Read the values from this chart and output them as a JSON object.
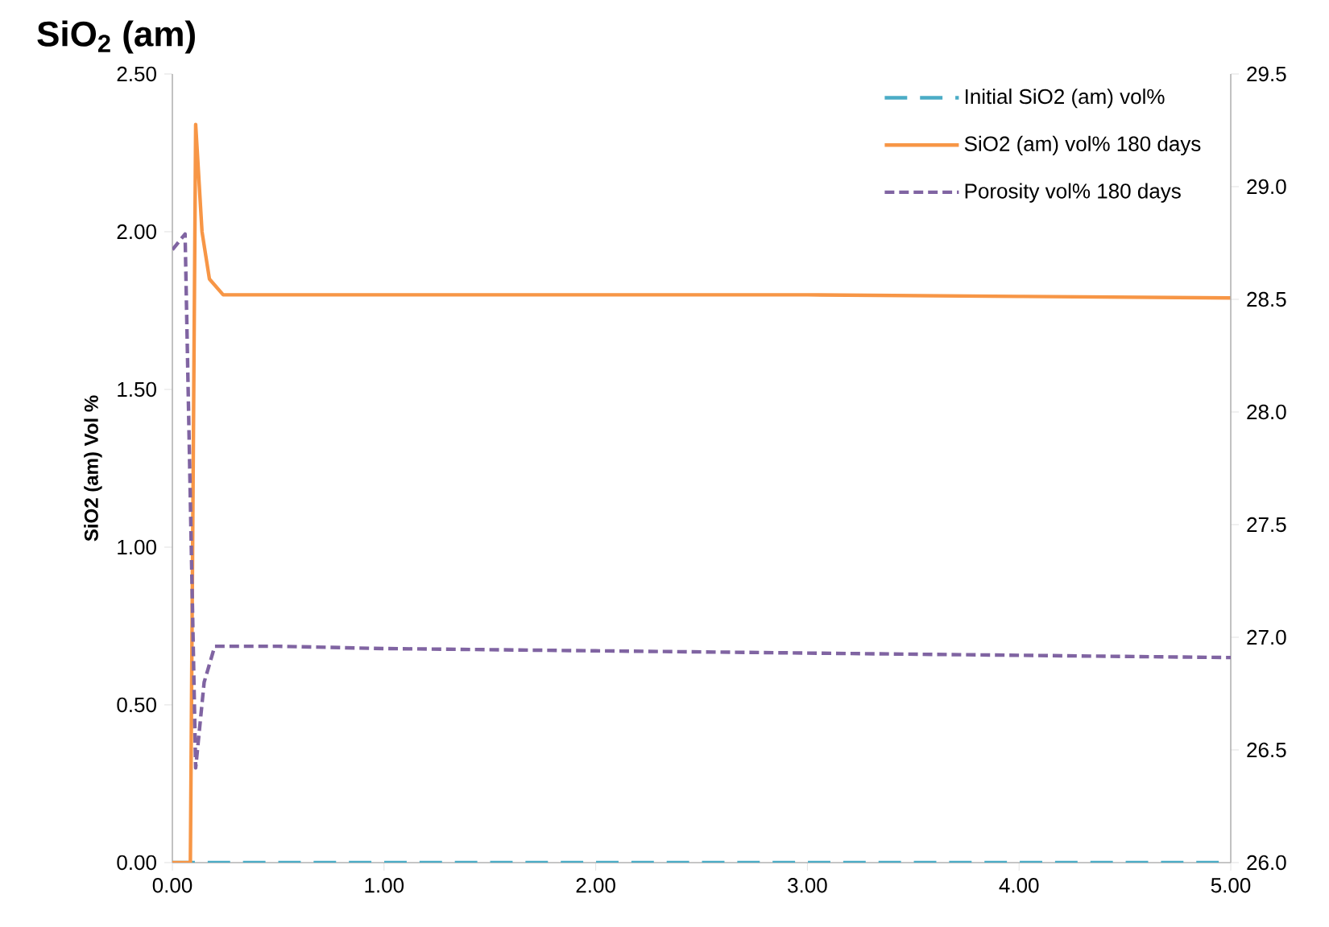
{
  "chart_data": {
    "type": "line",
    "title": "SiO$_{2}$ (am)",
    "ylabel": "SiO2 (am) Vol %",
    "xlim": [
      0,
      5
    ],
    "xticks": [
      {
        "value": 0,
        "label": "0.00"
      },
      {
        "value": 1,
        "label": "1.00"
      },
      {
        "value": 2,
        "label": "2.00"
      },
      {
        "value": 3,
        "label": "3.00"
      },
      {
        "value": 4,
        "label": "4.00"
      },
      {
        "value": 5,
        "label": "5.00"
      }
    ],
    "ylim": [
      0,
      2.5
    ],
    "yticks": [
      {
        "value": 0,
        "label": "0.00"
      },
      {
        "value": 0.5,
        "label": "0.50"
      },
      {
        "value": 1,
        "label": "1.00"
      },
      {
        "value": 1.5,
        "label": "1.50"
      },
      {
        "value": 2,
        "label": "2.00"
      },
      {
        "value": 2.5,
        "label": "2.50"
      }
    ],
    "y2lim": [
      26,
      29.5
    ],
    "y2ticks": [
      {
        "value": 26,
        "label": "26.0"
      },
      {
        "value": 26.5,
        "label": "26.5"
      },
      {
        "value": 27,
        "label": "27.0"
      },
      {
        "value": 27.5,
        "label": "27.5"
      },
      {
        "value": 28,
        "label": "28.0"
      },
      {
        "value": 28.5,
        "label": "28.5"
      },
      {
        "value": 29,
        "label": "29.0"
      },
      {
        "value": 29.5,
        "label": "29.5"
      }
    ],
    "grid": false,
    "legend": "top right",
    "marker": "none",
    "series": [
      {
        "name": "Initial SiO2 (am) vol%",
        "color": "#4bacc6",
        "line_style": "dashed",
        "x": [
          0,
          5
        ],
        "values": [
          0,
          0
        ]
      },
      {
        "name": "SiO2 (am) vol% 180 days",
        "color": "#f79646",
        "line_style": "solid",
        "x": [
          0,
          0.085,
          0.11,
          0.14,
          0.175,
          0.24,
          0.5,
          1,
          2,
          3,
          4,
          5
        ],
        "values": [
          0,
          0,
          2.34,
          2.0,
          1.85,
          1.8,
          1.8,
          1.8,
          1.8,
          1.8,
          1.795,
          1.79
        ]
      },
      {
        "name": "Porosity vol% 180 days",
        "color": "#8064a2",
        "line_style": "dotted",
        "axis": "y2",
        "x": [
          0,
          0.06,
          0.085,
          0.11,
          0.15,
          0.2,
          0.5,
          1,
          2,
          3,
          4,
          5
        ],
        "values": [
          28.72,
          28.79,
          27.6,
          26.42,
          26.8,
          26.96,
          26.96,
          26.95,
          26.94,
          26.93,
          26.92,
          26.91
        ]
      }
    ]
  }
}
